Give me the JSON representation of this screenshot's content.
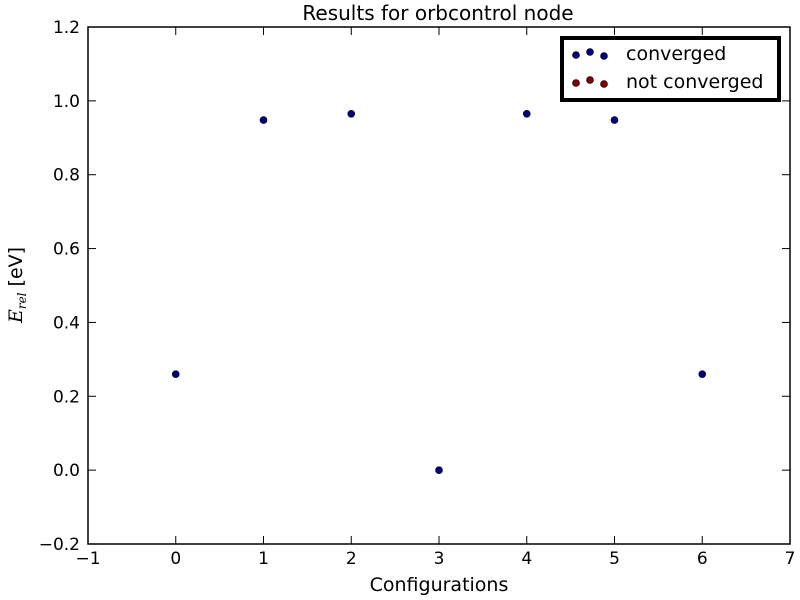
{
  "chart_data": {
    "type": "scatter",
    "title": "Results for orbcontrol node",
    "xlabel": "Configurations",
    "ylabel": {
      "symbol": "E",
      "subscript": "rel",
      "unit": "[eV]"
    },
    "xlim": [
      -1,
      7
    ],
    "ylim": [
      -0.2,
      1.2
    ],
    "xticks": [
      -1,
      0,
      1,
      2,
      3,
      4,
      5,
      6,
      7
    ],
    "xtick_labels": [
      "−1",
      "0",
      "1",
      "2",
      "3",
      "4",
      "5",
      "6",
      "7"
    ],
    "yticks": [
      -0.2,
      0.0,
      0.2,
      0.4,
      0.6,
      0.8,
      1.0,
      1.2
    ],
    "ytick_labels": [
      "−0.2",
      "0.0",
      "0.2",
      "0.4",
      "0.6",
      "0.8",
      "1.0",
      "1.2"
    ],
    "grid": false,
    "legend_position": "top-right",
    "series": [
      {
        "name": "converged",
        "color": "#000080",
        "points": [
          {
            "x": 0,
            "y": 0.26
          },
          {
            "x": 1,
            "y": 0.948
          },
          {
            "x": 2,
            "y": 0.965
          },
          {
            "x": 3,
            "y": 0.0
          },
          {
            "x": 4,
            "y": 0.965
          },
          {
            "x": 5,
            "y": 0.948
          },
          {
            "x": 6,
            "y": 0.26
          }
        ]
      },
      {
        "name": "not converged",
        "color": "#800000",
        "points": []
      }
    ]
  }
}
